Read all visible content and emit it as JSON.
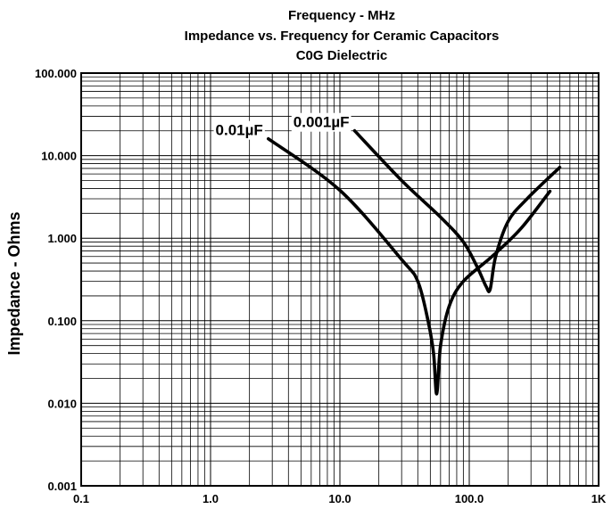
{
  "chart_data": {
    "type": "line",
    "title_lines": [
      "Frequency - MHz",
      "Impedance vs. Frequency for Ceramic Capacitors",
      "C0G Dielectric"
    ],
    "xlabel": "Frequency - MHz",
    "ylabel": "Impedance - Ohms",
    "xscale": "log",
    "yscale": "log",
    "xlim": [
      0.1,
      1000
    ],
    "ylim": [
      0.001,
      100
    ],
    "grid": true,
    "x_tick_labels": [
      "0.1",
      "1.0",
      "10.0",
      "100.0",
      "1K"
    ],
    "y_tick_labels": [
      "100.000",
      "10.000",
      "1.000",
      "0.100",
      "0.010",
      "0.001"
    ],
    "series": [
      {
        "name": "0.01µF",
        "points": [
          [
            2.8,
            16
          ],
          [
            10,
            3.8
          ],
          [
            30,
            0.55
          ],
          [
            40,
            0.3
          ],
          [
            48,
            0.1
          ],
          [
            53,
            0.04
          ],
          [
            56,
            0.013
          ],
          [
            60,
            0.05
          ],
          [
            70,
            0.15
          ],
          [
            90,
            0.3
          ],
          [
            150,
            0.6
          ],
          [
            250,
            1.3
          ],
          [
            420,
            3.7
          ]
        ]
      },
      {
        "name": "0.001µF",
        "points": [
          [
            13,
            20
          ],
          [
            30,
            5
          ],
          [
            60,
            1.8
          ],
          [
            90,
            0.9
          ],
          [
            115,
            0.45
          ],
          [
            135,
            0.26
          ],
          [
            145,
            0.24
          ],
          [
            160,
            0.6
          ],
          [
            200,
            1.6
          ],
          [
            280,
            3.0
          ],
          [
            500,
            7.2
          ]
        ]
      }
    ]
  }
}
